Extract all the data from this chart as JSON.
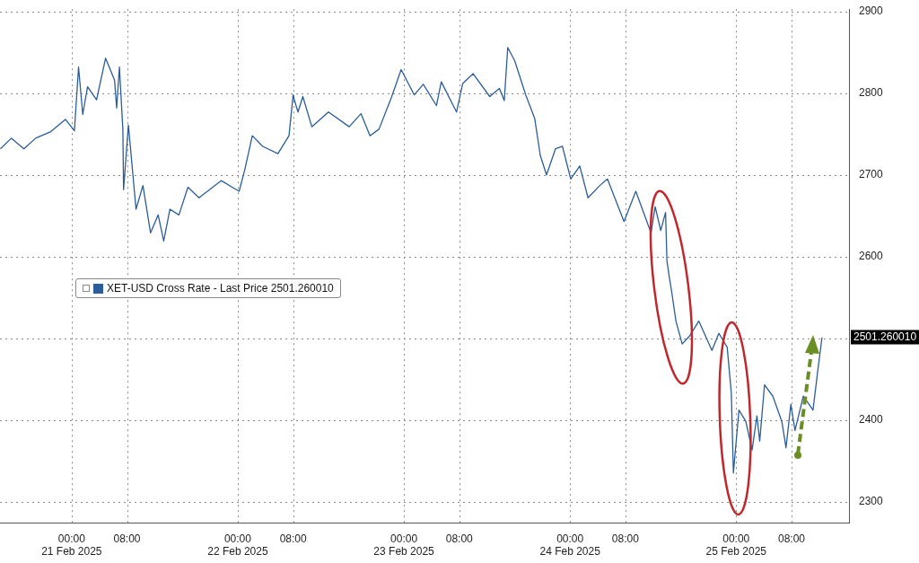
{
  "chart_data": {
    "type": "line",
    "x": [
      "2025-02-20T13:42",
      "2025-02-20T15:18",
      "2025-02-20T17:06",
      "2025-02-20T18:48",
      "2025-02-20T21:00",
      "2025-02-20T23:06",
      "2025-02-21T00:24",
      "2025-02-21T01:00",
      "2025-02-21T01:36",
      "2025-02-21T02:18",
      "2025-02-21T03:36",
      "2025-02-21T04:54",
      "2025-02-21T06:12",
      "2025-02-21T06:30",
      "2025-02-21T06:54",
      "2025-02-21T07:24",
      "2025-02-21T07:30",
      "2025-02-21T08:12",
      "2025-02-21T09:18",
      "2025-02-21T10:18",
      "2025-02-21T11:24",
      "2025-02-21T12:30",
      "2025-02-21T13:18",
      "2025-02-21T14:12",
      "2025-02-21T15:30",
      "2025-02-21T16:48",
      "2025-02-21T18:24",
      "2025-02-21T21:36",
      "2025-02-22T00:12",
      "2025-02-22T01:00",
      "2025-02-22T02:06",
      "2025-02-22T03:36",
      "2025-02-22T05:48",
      "2025-02-22T07:24",
      "2025-02-22T08:00",
      "2025-02-22T08:12",
      "2025-02-22T08:42",
      "2025-02-22T09:24",
      "2025-02-22T10:42",
      "2025-02-22T13:06",
      "2025-02-22T16:06",
      "2025-02-22T17:48",
      "2025-02-22T19:06",
      "2025-02-22T20:24",
      "2025-02-22T22:12",
      "2025-02-22T23:36",
      "2025-02-23T01:30",
      "2025-02-23T02:48",
      "2025-02-23T04:42",
      "2025-02-23T05:24",
      "2025-02-23T07:36",
      "2025-02-23T08:30",
      "2025-02-23T10:00",
      "2025-02-23T12:24",
      "2025-02-23T13:48",
      "2025-02-23T14:30",
      "2025-02-23T15:00",
      "2025-02-23T16:00",
      "2025-02-23T17:36",
      "2025-02-23T18:54",
      "2025-02-23T19:42",
      "2025-02-23T20:36",
      "2025-02-23T21:54",
      "2025-02-23T22:54",
      "2025-02-24T00:06",
      "2025-02-24T01:24",
      "2025-02-24T02:36",
      "2025-02-24T04:18",
      "2025-02-24T05:24",
      "2025-02-24T07:48",
      "2025-02-24T09:30",
      "2025-02-24T11:42",
      "2025-02-24T12:18",
      "2025-02-24T13:06",
      "2025-02-24T13:48",
      "2025-02-24T14:00",
      "2025-02-24T14:18",
      "2025-02-24T14:42",
      "2025-02-24T15:18",
      "2025-02-24T16:12",
      "2025-02-24T17:18",
      "2025-02-24T18:36",
      "2025-02-24T20:30",
      "2025-02-24T21:30",
      "2025-02-24T22:42",
      "2025-02-24T23:18",
      "2025-02-24T23:36",
      "2025-02-25T00:24",
      "2025-02-25T01:24",
      "2025-02-25T02:18",
      "2025-02-25T03:00",
      "2025-02-25T03:24",
      "2025-02-25T04:06",
      "2025-02-25T05:18",
      "2025-02-25T06:36",
      "2025-02-25T07:12",
      "2025-02-25T07:54",
      "2025-02-25T08:30",
      "2025-02-25T09:42",
      "2025-02-25T11:06",
      "2025-02-25T11:48",
      "2025-02-25T12:24"
    ],
    "series": [
      {
        "name": "XET-USD Cross Rate - Last Price 2501.260010",
        "color": "#2a5d9a",
        "values": [
          2732,
          2745,
          2732,
          2745,
          2753,
          2768,
          2754,
          2832,
          2774,
          2808,
          2792,
          2843,
          2816,
          2782,
          2832,
          2756,
          2682,
          2761,
          2658,
          2687,
          2629,
          2651,
          2619,
          2658,
          2651,
          2685,
          2672,
          2693,
          2680,
          2706,
          2748,
          2735,
          2726,
          2748,
          2798,
          2791,
          2777,
          2796,
          2759,
          2777,
          2759,
          2775,
          2748,
          2756,
          2795,
          2829,
          2798,
          2811,
          2785,
          2814,
          2777,
          2812,
          2824,
          2796,
          2806,
          2791,
          2856,
          2840,
          2798,
          2769,
          2724,
          2700,
          2732,
          2735,
          2695,
          2711,
          2672,
          2687,
          2695,
          2643,
          2680,
          2629,
          2661,
          2632,
          2654,
          2595,
          2577,
          2556,
          2521,
          2493,
          2503,
          2521,
          2485,
          2506,
          2489,
          2433,
          2335,
          2412,
          2398,
          2363,
          2405,
          2374,
          2443,
          2429,
          2398,
          2366,
          2419,
          2387,
          2429,
          2412,
          2461,
          2501
        ]
      }
    ],
    "xlim": [
      "2025-02-20T13:39",
      "2025-02-25T16:18"
    ],
    "xticks": [
      {
        "value": "2025-02-21T00:00",
        "label": "00:00\n21 Feb 2025"
      },
      {
        "value": "2025-02-21T08:00",
        "label": "08:00"
      },
      {
        "value": "2025-02-22T00:00",
        "label": "00:00\n22 Feb 2025"
      },
      {
        "value": "2025-02-22T08:00",
        "label": "08:00"
      },
      {
        "value": "2025-02-23T00:00",
        "label": "00:00\n23 Feb 2025"
      },
      {
        "value": "2025-02-23T08:00",
        "label": "08:00"
      },
      {
        "value": "2025-02-24T00:00",
        "label": "00:00\n24 Feb 2025"
      },
      {
        "value": "2025-02-24T08:00",
        "label": "08:00"
      },
      {
        "value": "2025-02-25T00:00",
        "label": "00:00\n25 Feb 2025"
      },
      {
        "value": "2025-02-25T08:00",
        "label": "08:00"
      }
    ],
    "ylim": [
      2274,
      2903
    ],
    "yticks": [
      2300,
      2400,
      {
        "value": 2500,
        "label": null
      },
      2600,
      2700,
      2800,
      2900
    ],
    "annotations": [
      {
        "text": "2501.260010",
        "x": "2025-02-25T12:24",
        "y": 2501.26
      }
    ],
    "grid": true,
    "legend": "left"
  }
}
